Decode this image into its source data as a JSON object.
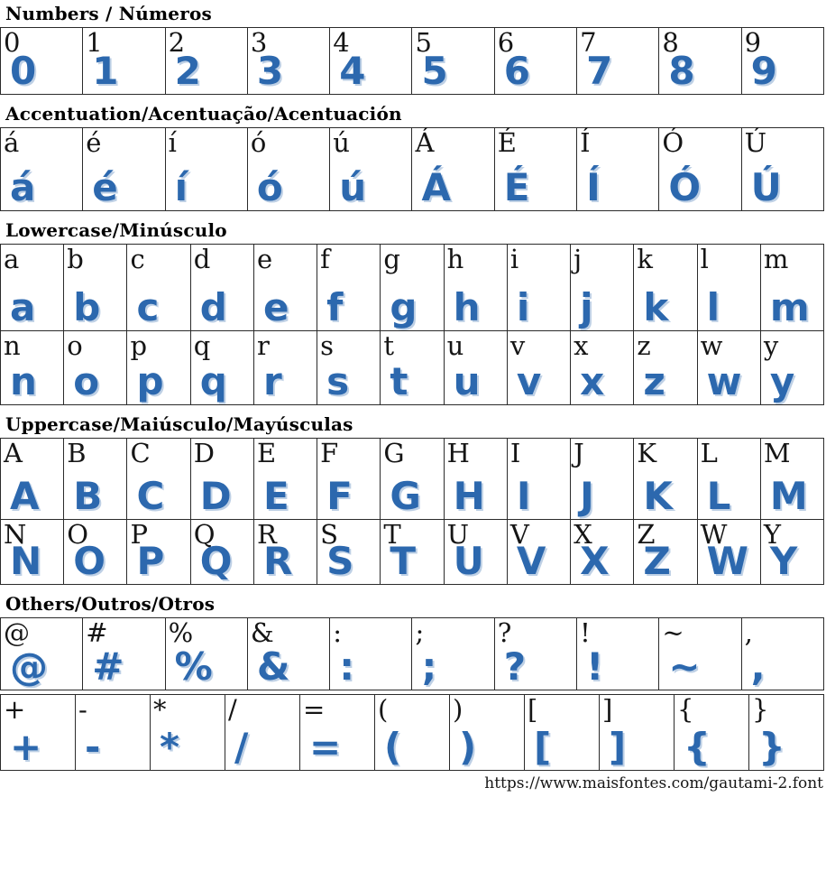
{
  "page": {
    "footer_url": "https://www.maisfontes.com/gautami-2.font",
    "accent_color": "#2c68ae",
    "reference_color": "#151515",
    "border_color": "#2b2b2b"
  },
  "sections": [
    {
      "id": "numbers",
      "title": "Numbers / Números",
      "rows": [
        [
          "0",
          "1",
          "2",
          "3",
          "4",
          "5",
          "6",
          "7",
          "8",
          "9"
        ]
      ]
    },
    {
      "id": "accentuation",
      "title": "Accentuation/Acentuação/Acentuación",
      "rows": [
        [
          "á",
          "é",
          "í",
          "ó",
          "ú",
          "Á",
          "É",
          "Í",
          "Ó",
          "Ú"
        ]
      ]
    },
    {
      "id": "lowercase",
      "title": "Lowercase/Minúsculo",
      "rows": [
        [
          "a",
          "b",
          "c",
          "d",
          "e",
          "f",
          "g",
          "h",
          "i",
          "j",
          "k",
          "l",
          "m"
        ],
        [
          "n",
          "o",
          "p",
          "q",
          "r",
          "s",
          "t",
          "u",
          "v",
          "x",
          "z",
          "w",
          "y"
        ]
      ]
    },
    {
      "id": "uppercase",
      "title": "Uppercase/Maiúsculo/Mayúsculas",
      "rows": [
        [
          "A",
          "B",
          "C",
          "D",
          "E",
          "F",
          "G",
          "H",
          "I",
          "J",
          "K",
          "L",
          "M"
        ],
        [
          "N",
          "O",
          "P",
          "Q",
          "R",
          "S",
          "T",
          "U",
          "V",
          "X",
          "Z",
          "W",
          "Y"
        ]
      ]
    },
    {
      "id": "others",
      "title": "Others/Outros/Otros",
      "separate_rows": true,
      "rows": [
        [
          "@",
          "#",
          "%",
          "&",
          ":",
          ";",
          "?",
          "!",
          "~",
          ","
        ],
        [
          "+",
          "-",
          "*",
          "/",
          "=",
          "(",
          ")",
          "[",
          "]",
          "{",
          "}"
        ]
      ]
    }
  ]
}
